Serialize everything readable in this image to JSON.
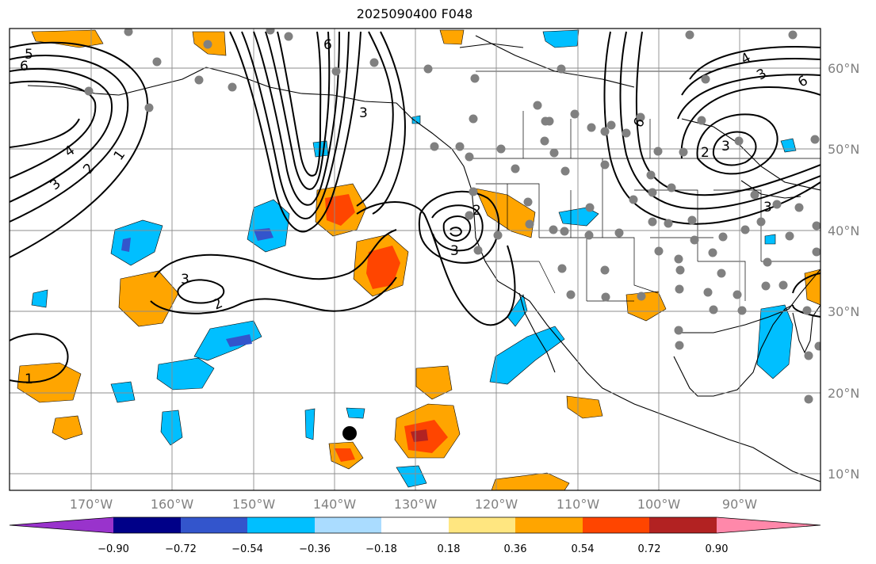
{
  "title": "2025090400 F048",
  "map": {
    "lon_labels": [
      "170°W",
      "160°W",
      "150°W",
      "140°W",
      "130°W",
      "120°W",
      "110°W",
      "100°W",
      "90°W"
    ],
    "lat_labels": [
      "60°N",
      "50°N",
      "40°N",
      "30°N",
      "20°N",
      "10°N"
    ],
    "gridlines": true,
    "contour_labels": [
      "5",
      "6",
      "4",
      "3",
      "2",
      "1",
      "6",
      "3",
      "3",
      "2",
      "3",
      "2",
      "3",
      "4",
      "3",
      "6",
      "6",
      "2",
      "3",
      "1"
    ],
    "highlight_point_icon": "black-dot-marker",
    "station_marker_color": "#808080"
  },
  "colorbar": {
    "tick_labels": [
      "−0.90",
      "−0.72",
      "−0.54",
      "−0.36",
      "−0.18",
      "0.18",
      "0.36",
      "0.54",
      "0.72",
      "0.90"
    ],
    "colors": [
      "#9933cc",
      "#000088",
      "#3355cc",
      "#00bfff",
      "#aadcff",
      "#ffffff",
      "#ffe680",
      "#ffa500",
      "#ff4500",
      "#b22222",
      "#ff88aa"
    ]
  }
}
